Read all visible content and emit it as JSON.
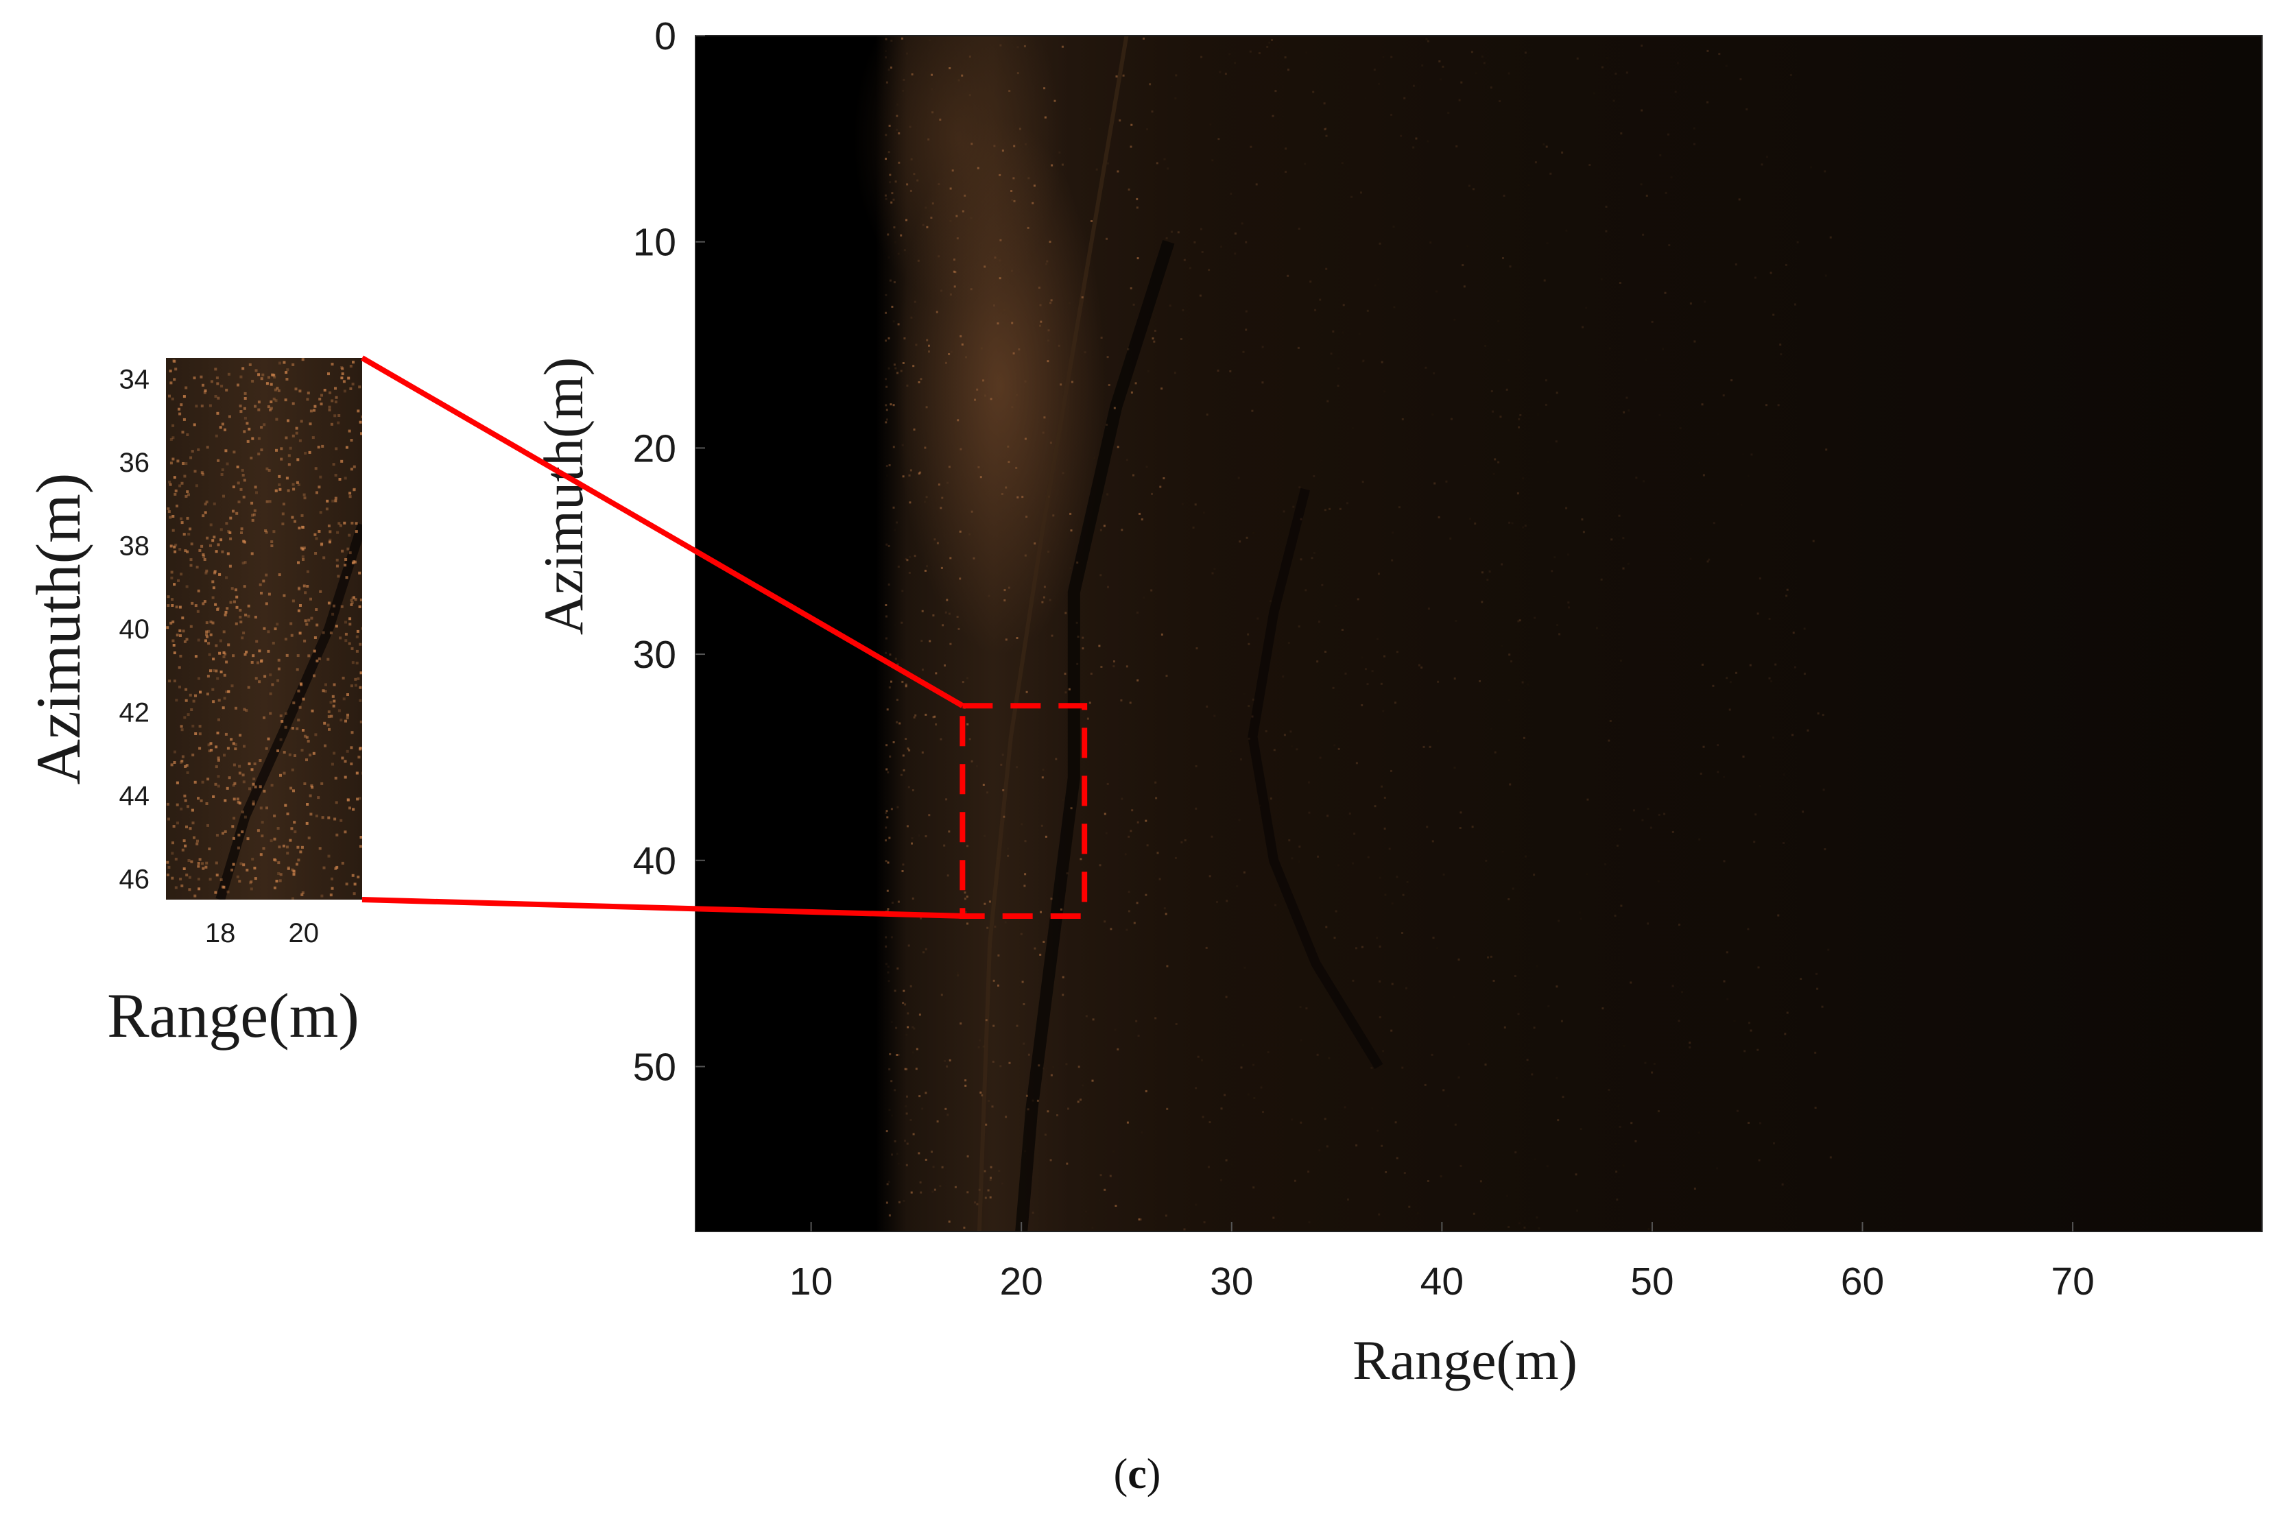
{
  "chart_data": [
    {
      "type": "heatmap",
      "description_role": "main",
      "xlabel": "Range(m)",
      "ylabel": "Azimuth(m)",
      "xlim": [
        4.5,
        79
      ],
      "ylim": [
        0,
        58
      ],
      "y_reversed": true,
      "xticks": [
        10,
        20,
        30,
        40,
        50,
        60,
        70
      ],
      "yticks": [
        0,
        10,
        20,
        30,
        40,
        50
      ],
      "highlight_box": {
        "x": [
          17.2,
          23.0
        ],
        "y": [
          32.5,
          42.7
        ],
        "color": "#ff0000",
        "style": "dashed"
      }
    },
    {
      "type": "heatmap",
      "description_role": "inset",
      "xlabel": "Range(m)",
      "ylabel": "Azimuth(m)",
      "xlim": [
        16.7,
        21.4
      ],
      "ylim": [
        33.5,
        46.5
      ],
      "y_reversed": true,
      "xticks": [
        18,
        20
      ],
      "yticks": [
        34,
        36,
        38,
        40,
        42,
        44,
        46
      ]
    }
  ],
  "caption": {
    "open": "(",
    "letter": "c",
    "close": ")"
  },
  "colors": {
    "highlight": "#ff0000",
    "background": "#000000",
    "speckle": "#c8804a"
  }
}
